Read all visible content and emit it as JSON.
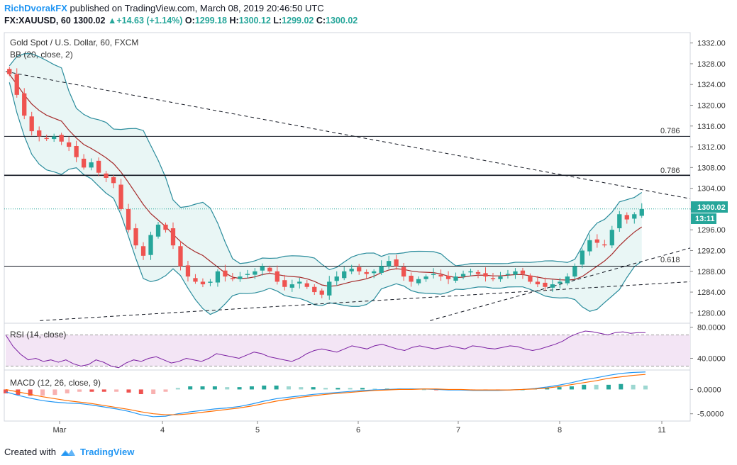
{
  "header": {
    "author": "RichDvorakFX",
    "published_text": "published on TradingView.com, March 08, 2019 20:46:50 UTC",
    "symbol": "FX:XAUUSD, 60",
    "last": "1300.02",
    "change": "+14.63 (+1.14%)",
    "o_label": "O:",
    "o_value": "1299.18",
    "h_label": "H:",
    "h_value": "1300.12",
    "l_label": "L:",
    "l_value": "1299.02",
    "c_label": "C:",
    "c_value": "1300.02"
  },
  "price_pane": {
    "title": "Gold Spot / U.S. Dollar, 60, FXCM",
    "indicator": "BB (20, close, 2)",
    "price_badge": "1300.02",
    "time_badge": "13:11",
    "fib_labels": [
      "0.786",
      "0.786",
      "0.618"
    ]
  },
  "rsi_pane": {
    "label": "RSI (14, close)"
  },
  "macd_pane": {
    "label": "MACD (12, 26, close, 9)"
  },
  "footer": {
    "created_with": "Created with",
    "brand": "TradingView"
  },
  "colors": {
    "up": "#26a69a",
    "down": "#ef5350",
    "bb": "#2a8c9c",
    "bb_basis": "#a52a2a",
    "bb_fill": "#e0f2f1",
    "rsi": "#7b1fa2",
    "rsi_band": "#f3e5f5",
    "macd_line": "#2196f3",
    "signal_line": "#ff6d00"
  },
  "chart_data": [
    {
      "type": "candlestick",
      "title": "Gold Spot / U.S. Dollar, 60, FXCM",
      "x_ticks": [
        "Mar",
        "4",
        "5",
        "6",
        "7",
        "8",
        "11"
      ],
      "y_ticks": [
        1280,
        1284,
        1288,
        1292,
        1296,
        1300,
        1304,
        1308,
        1312,
        1316,
        1320,
        1324,
        1328,
        1332
      ],
      "ylim": [
        1278,
        1334
      ],
      "fib_levels": [
        {
          "label": "0.786",
          "value": 1314.0
        },
        {
          "label": "0.786",
          "value": 1306.5
        },
        {
          "label": "0.618",
          "value": 1289.0
        }
      ],
      "last_price": 1300.02,
      "trendlines": [
        {
          "from": [
            0.0,
            1326.5
          ],
          "to": [
            1.0,
            1302.0
          ]
        },
        {
          "from": [
            0.05,
            1278.5
          ],
          "to": [
            1.0,
            1286.0
          ]
        },
        {
          "from": [
            0.62,
            1278.5
          ],
          "to": [
            1.0,
            1292.5
          ]
        }
      ],
      "close_path": [
        1326,
        1322,
        1318,
        1315,
        1314,
        1313.5,
        1314,
        1313,
        1312,
        1310,
        1308,
        1309,
        1307,
        1306,
        1305,
        1300,
        1296,
        1293,
        1291,
        1295,
        1297,
        1296,
        1293,
        1289,
        1287,
        1286,
        1285.5,
        1286,
        1288,
        1287,
        1286.5,
        1287,
        1287.5,
        1288,
        1289,
        1288,
        1286,
        1285,
        1285.5,
        1286,
        1285,
        1284,
        1283.5,
        1286,
        1287,
        1288,
        1288.5,
        1288,
        1287.5,
        1288,
        1289,
        1290,
        1289,
        1287,
        1286,
        1286.5,
        1287,
        1287.5,
        1287,
        1286.5,
        1287,
        1287.5,
        1288,
        1287.5,
        1287,
        1286.5,
        1287,
        1287.5,
        1288,
        1287.5,
        1286,
        1285.5,
        1285,
        1285.5,
        1286,
        1287,
        1289,
        1292,
        1294,
        1293.5,
        1293,
        1296,
        1299,
        1298,
        1299,
        1300
      ]
    },
    {
      "type": "line",
      "name": "RSI (14, close)",
      "y_ticks": [
        40,
        80
      ],
      "ylim": [
        25,
        85
      ],
      "band": [
        30,
        70
      ],
      "values": [
        70,
        55,
        45,
        38,
        40,
        36,
        38,
        35,
        38,
        33,
        30,
        32,
        38,
        35,
        30,
        28,
        34,
        38,
        36,
        40,
        42,
        38,
        34,
        36,
        40,
        38,
        36,
        40,
        46,
        44,
        42,
        40,
        44,
        48,
        46,
        42,
        40,
        38,
        36,
        40,
        46,
        50,
        52,
        50,
        48,
        52,
        56,
        54,
        52,
        56,
        58,
        55,
        52,
        50,
        54,
        56,
        54,
        52,
        54,
        56,
        54,
        52,
        56,
        55,
        53,
        52,
        54,
        56,
        55,
        52,
        50,
        52,
        55,
        58,
        62,
        68,
        72,
        75,
        74,
        72,
        70,
        73,
        74,
        72,
        73,
        73
      ]
    },
    {
      "type": "line",
      "name": "MACD (12, 26, close, 9)",
      "y_ticks": [
        0,
        -5
      ],
      "ylim": [
        -6.5,
        4
      ],
      "macd": [
        -0.5,
        -1.2,
        -1.8,
        -2.3,
        -2.6,
        -2.8,
        -2.9,
        -3.2,
        -3.6,
        -4.0,
        -4.5,
        -5.2,
        -5.6,
        -5.5,
        -5.0,
        -4.6,
        -4.3,
        -4.0,
        -3.8,
        -3.5,
        -3.0,
        -2.4,
        -1.9,
        -1.6,
        -1.3,
        -1.0,
        -0.8,
        -0.6,
        -0.4,
        -0.2,
        -0.1,
        0.0,
        0.1,
        0.1,
        0.1,
        0.0,
        -0.1,
        -0.1,
        -0.2,
        -0.2,
        -0.2,
        -0.1,
        0.0,
        0.2,
        0.5,
        0.9,
        1.4,
        2.0,
        2.4,
        2.9,
        3.3,
        3.5,
        3.6
      ],
      "signal": [
        0.0,
        -0.5,
        -1.0,
        -1.5,
        -1.9,
        -2.3,
        -2.6,
        -2.9,
        -3.3,
        -3.7,
        -4.1,
        -4.6,
        -5.0,
        -5.2,
        -5.2,
        -5.0,
        -4.7,
        -4.4,
        -4.1,
        -3.8,
        -3.4,
        -2.9,
        -2.4,
        -2.0,
        -1.6,
        -1.3,
        -1.0,
        -0.8,
        -0.6,
        -0.4,
        -0.2,
        -0.1,
        0.0,
        0.0,
        0.1,
        0.1,
        0.0,
        0.0,
        -0.1,
        -0.1,
        -0.1,
        -0.1,
        0.0,
        0.1,
        0.3,
        0.6,
        1.0,
        1.4,
        1.8,
        2.3,
        2.6,
        2.9,
        3.1
      ]
    }
  ]
}
